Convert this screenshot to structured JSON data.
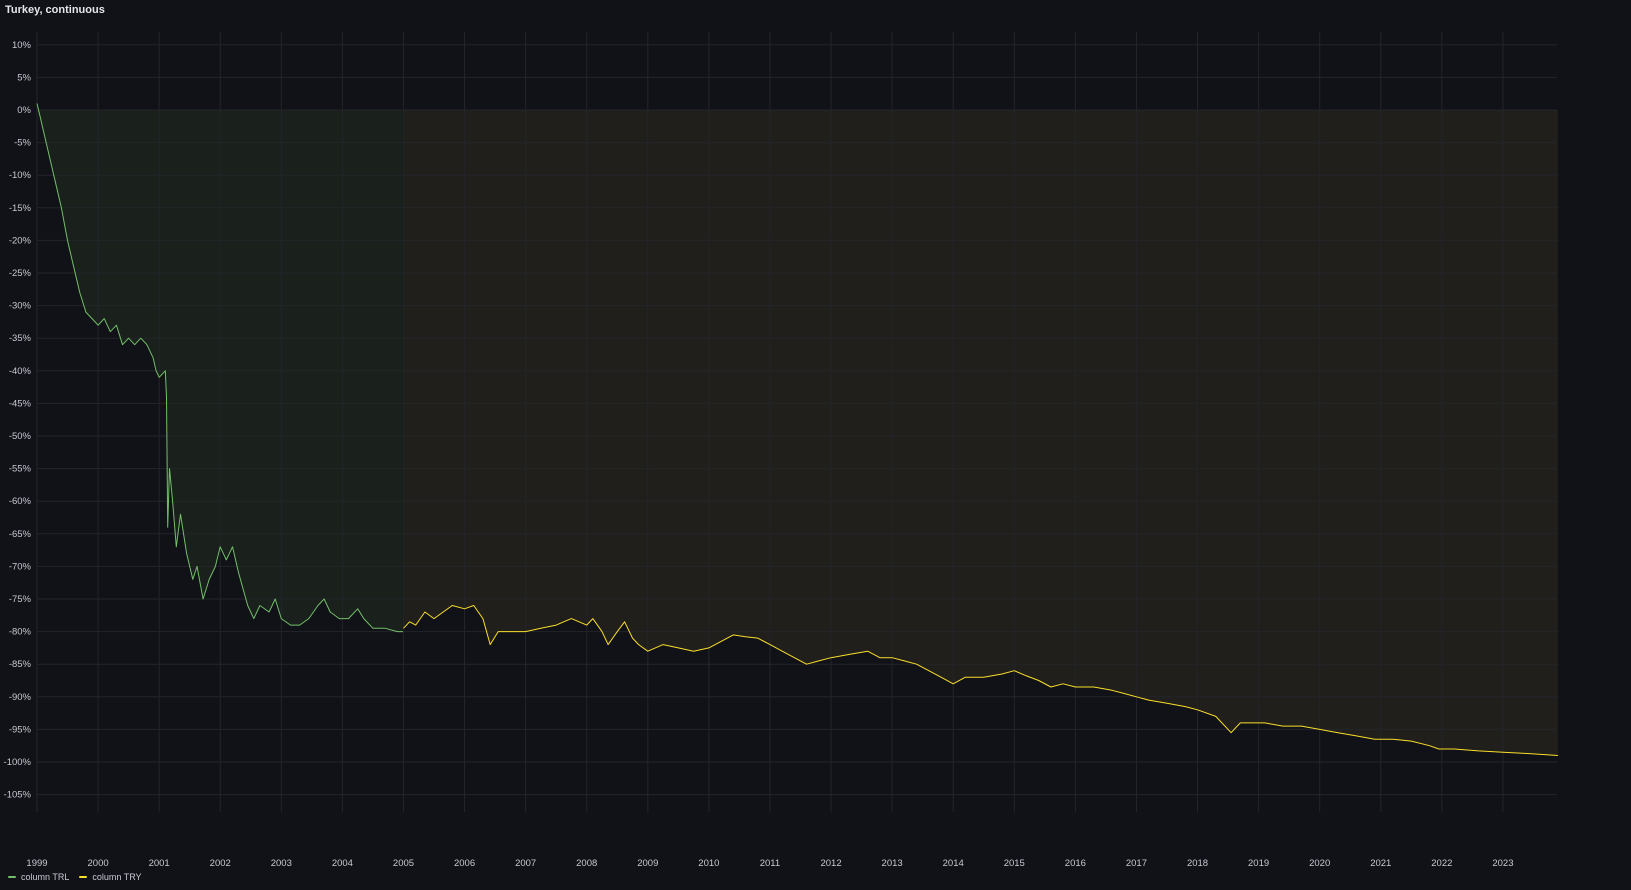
{
  "panel": {
    "title": "Turkey, continuous"
  },
  "chart_data": {
    "type": "line",
    "title": "Turkey, continuous",
    "xlabel": "",
    "ylabel": "",
    "x_tick_labels": [
      "1999",
      "2000",
      "2001",
      "2002",
      "2003",
      "2004",
      "2005",
      "2006",
      "2007",
      "2008",
      "2009",
      "2010",
      "2011",
      "2012",
      "2013",
      "2014",
      "2015",
      "2016",
      "2017",
      "2018",
      "2019",
      "2020",
      "2021",
      "2022",
      "2023"
    ],
    "y_tick_labels": [
      "10%",
      "5%",
      "0%",
      "-5%",
      "-10%",
      "-15%",
      "-20%",
      "-25%",
      "-30%",
      "-35%",
      "-40%",
      "-45%",
      "-50%",
      "-55%",
      "-60%",
      "-65%",
      "-70%",
      "-75%",
      "-80%",
      "-85%",
      "-90%",
      "-95%",
      "-100%",
      "-105%"
    ],
    "y_ticks": [
      10,
      5,
      0,
      -5,
      -10,
      -15,
      -20,
      -25,
      -30,
      -35,
      -40,
      -45,
      -50,
      -55,
      -60,
      -65,
      -70,
      -75,
      -80,
      -85,
      -90,
      -95,
      -100,
      -105
    ],
    "xlim": [
      1999.0,
      2023.9
    ],
    "ylim": [
      -107,
      12
    ],
    "grid": true,
    "legend_position": "bottom-left",
    "series": [
      {
        "name": "column TRL",
        "color": "#73bf69",
        "fill_color": "#1a201b",
        "points": [
          [
            1999.0,
            1
          ],
          [
            1999.05,
            -1
          ],
          [
            1999.1,
            -3
          ],
          [
            1999.2,
            -7
          ],
          [
            1999.3,
            -11
          ],
          [
            1999.4,
            -15
          ],
          [
            1999.5,
            -20
          ],
          [
            1999.6,
            -24
          ],
          [
            1999.7,
            -28
          ],
          [
            1999.8,
            -31
          ],
          [
            1999.9,
            -32
          ],
          [
            2000.0,
            -33
          ],
          [
            2000.1,
            -32
          ],
          [
            2000.2,
            -34
          ],
          [
            2000.3,
            -33
          ],
          [
            2000.4,
            -36
          ],
          [
            2000.5,
            -35
          ],
          [
            2000.6,
            -36
          ],
          [
            2000.7,
            -35
          ],
          [
            2000.8,
            -36
          ],
          [
            2000.9,
            -38
          ],
          [
            2000.95,
            -40
          ],
          [
            2001.0,
            -41
          ],
          [
            2001.1,
            -40
          ],
          [
            2001.12,
            -44
          ],
          [
            2001.14,
            -64
          ],
          [
            2001.17,
            -55
          ],
          [
            2001.22,
            -60
          ],
          [
            2001.28,
            -67
          ],
          [
            2001.35,
            -62
          ],
          [
            2001.45,
            -68
          ],
          [
            2001.55,
            -72
          ],
          [
            2001.62,
            -70
          ],
          [
            2001.72,
            -75
          ],
          [
            2001.82,
            -72
          ],
          [
            2001.92,
            -70
          ],
          [
            2002.0,
            -67
          ],
          [
            2002.1,
            -69
          ],
          [
            2002.2,
            -67
          ],
          [
            2002.3,
            -71
          ],
          [
            2002.45,
            -76
          ],
          [
            2002.55,
            -78
          ],
          [
            2002.65,
            -76
          ],
          [
            2002.8,
            -77
          ],
          [
            2002.9,
            -75
          ],
          [
            2003.0,
            -78
          ],
          [
            2003.15,
            -79
          ],
          [
            2003.3,
            -79
          ],
          [
            2003.45,
            -78
          ],
          [
            2003.6,
            -76
          ],
          [
            2003.7,
            -75
          ],
          [
            2003.8,
            -77
          ],
          [
            2003.95,
            -78
          ],
          [
            2004.1,
            -78
          ],
          [
            2004.25,
            -76.5
          ],
          [
            2004.35,
            -78
          ],
          [
            2004.5,
            -79.5
          ],
          [
            2004.7,
            -79.5
          ],
          [
            2004.9,
            -80
          ],
          [
            2004.99,
            -80
          ]
        ]
      },
      {
        "name": "column TRY",
        "color": "#fade2a",
        "fill_color": "#211f1b",
        "points": [
          [
            2005.0,
            -79.5
          ],
          [
            2005.1,
            -78.5
          ],
          [
            2005.2,
            -79
          ],
          [
            2005.35,
            -77
          ],
          [
            2005.5,
            -78
          ],
          [
            2005.65,
            -77
          ],
          [
            2005.8,
            -76
          ],
          [
            2006.0,
            -76.5
          ],
          [
            2006.15,
            -76
          ],
          [
            2006.3,
            -78
          ],
          [
            2006.42,
            -82
          ],
          [
            2006.55,
            -80
          ],
          [
            2006.75,
            -80
          ],
          [
            2007.0,
            -80
          ],
          [
            2007.25,
            -79.5
          ],
          [
            2007.5,
            -79
          ],
          [
            2007.75,
            -78
          ],
          [
            2008.0,
            -79
          ],
          [
            2008.1,
            -78
          ],
          [
            2008.25,
            -80
          ],
          [
            2008.35,
            -82
          ],
          [
            2008.5,
            -80
          ],
          [
            2008.62,
            -78.5
          ],
          [
            2008.75,
            -81
          ],
          [
            2008.85,
            -82
          ],
          [
            2009.0,
            -83
          ],
          [
            2009.25,
            -82
          ],
          [
            2009.5,
            -82.5
          ],
          [
            2009.75,
            -83
          ],
          [
            2010.0,
            -82.5
          ],
          [
            2010.2,
            -81.5
          ],
          [
            2010.4,
            -80.5
          ],
          [
            2010.6,
            -80.8
          ],
          [
            2010.8,
            -81
          ],
          [
            2011.0,
            -82
          ],
          [
            2011.2,
            -83
          ],
          [
            2011.4,
            -84
          ],
          [
            2011.6,
            -85
          ],
          [
            2011.8,
            -84.5
          ],
          [
            2012.0,
            -84
          ],
          [
            2012.3,
            -83.5
          ],
          [
            2012.6,
            -83
          ],
          [
            2012.8,
            -84
          ],
          [
            2013.0,
            -84
          ],
          [
            2013.2,
            -84.5
          ],
          [
            2013.4,
            -85
          ],
          [
            2013.6,
            -86
          ],
          [
            2013.8,
            -87
          ],
          [
            2014.0,
            -88
          ],
          [
            2014.2,
            -87
          ],
          [
            2014.5,
            -87
          ],
          [
            2014.8,
            -86.5
          ],
          [
            2015.0,
            -86
          ],
          [
            2015.2,
            -86.8
          ],
          [
            2015.4,
            -87.5
          ],
          [
            2015.6,
            -88.5
          ],
          [
            2015.8,
            -88
          ],
          [
            2016.0,
            -88.5
          ],
          [
            2016.3,
            -88.5
          ],
          [
            2016.6,
            -89
          ],
          [
            2016.8,
            -89.5
          ],
          [
            2017.0,
            -90
          ],
          [
            2017.2,
            -90.5
          ],
          [
            2017.5,
            -91
          ],
          [
            2017.8,
            -91.5
          ],
          [
            2018.0,
            -92
          ],
          [
            2018.3,
            -93
          ],
          [
            2018.55,
            -95.5
          ],
          [
            2018.7,
            -94
          ],
          [
            2018.9,
            -94
          ],
          [
            2019.1,
            -94
          ],
          [
            2019.4,
            -94.5
          ],
          [
            2019.7,
            -94.5
          ],
          [
            2020.0,
            -95
          ],
          [
            2020.3,
            -95.5
          ],
          [
            2020.6,
            -96
          ],
          [
            2020.9,
            -96.5
          ],
          [
            2021.2,
            -96.5
          ],
          [
            2021.5,
            -96.8
          ],
          [
            2021.8,
            -97.5
          ],
          [
            2021.95,
            -98
          ],
          [
            2022.2,
            -98
          ],
          [
            2022.6,
            -98.3
          ],
          [
            2023.0,
            -98.5
          ],
          [
            2023.4,
            -98.7
          ],
          [
            2023.9,
            -99
          ]
        ]
      }
    ],
    "shaded_regions": [
      {
        "x_from": 1999.0,
        "x_to": 2005.0,
        "y_from": 0,
        "color": "#1a201b"
      },
      {
        "x_from": 2005.0,
        "x_to": 2023.9,
        "y_from": 0,
        "color": "#211f1b"
      }
    ]
  }
}
